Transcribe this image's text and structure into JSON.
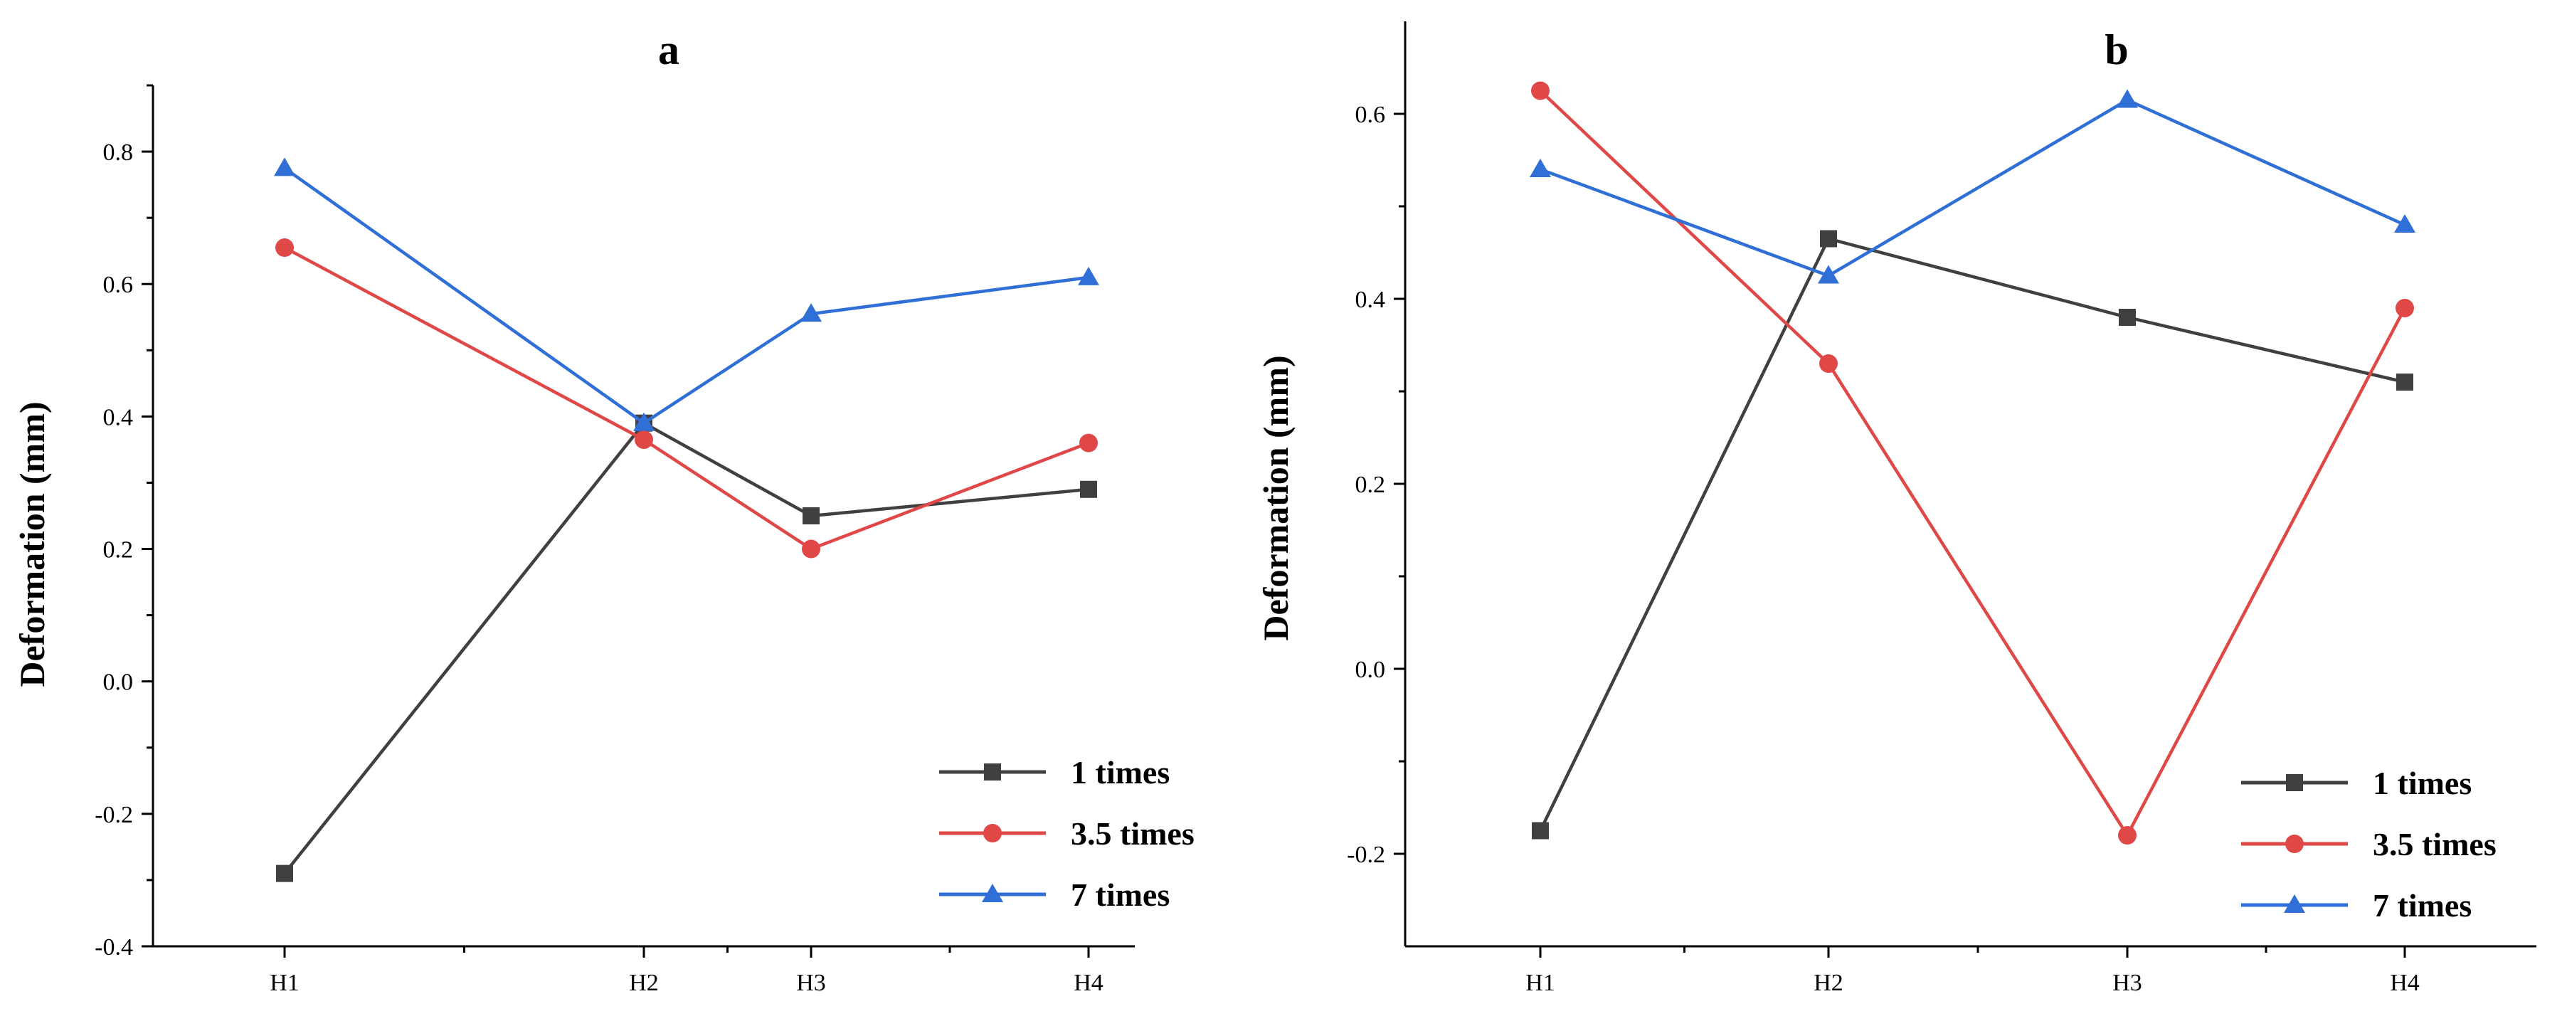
{
  "chart_data": [
    {
      "type": "line",
      "title": "a",
      "xlabel": "",
      "ylabel": "Deformation (mm)",
      "categories": [
        "H1",
        "H2",
        "H3",
        "H4"
      ],
      "ylim": [
        -0.4,
        0.9
      ],
      "yticks": [
        -0.4,
        -0.2,
        0.0,
        0.2,
        0.4,
        0.6,
        0.8
      ],
      "ytick_labels": [
        "-0.4",
        "-0.2",
        "0.0",
        "0.2",
        "0.4",
        "0.6",
        "0.8"
      ],
      "legend_position": "bottom-right",
      "series": [
        {
          "name": "1 times",
          "values": [
            -0.29,
            0.39,
            0.25,
            0.29
          ],
          "color": "#404040",
          "marker": "square"
        },
        {
          "name": "3.5 times",
          "values": [
            0.655,
            0.365,
            0.2,
            0.36
          ],
          "color": "#e04848",
          "marker": "circle"
        },
        {
          "name": "7 times",
          "values": [
            0.775,
            0.39,
            0.555,
            0.61
          ],
          "color": "#2f6fd6",
          "marker": "triangle"
        }
      ]
    },
    {
      "type": "line",
      "title": "b",
      "xlabel": "",
      "ylabel": "Deformation (mm)",
      "categories": [
        "H1",
        "H2",
        "H3",
        "H4"
      ],
      "ylim": [
        -0.3,
        0.7
      ],
      "yticks": [
        -0.2,
        0.0,
        0.2,
        0.4,
        0.6
      ],
      "ytick_labels": [
        "-0.2",
        "0.0",
        "0.2",
        "0.4",
        "0.6"
      ],
      "legend_position": "bottom-right",
      "series": [
        {
          "name": "1 times",
          "values": [
            -0.175,
            0.465,
            0.38,
            0.31
          ],
          "color": "#404040",
          "marker": "square"
        },
        {
          "name": "3.5 times",
          "values": [
            0.625,
            0.33,
            -0.18,
            0.39
          ],
          "color": "#e04848",
          "marker": "circle"
        },
        {
          "name": "7 times",
          "values": [
            0.54,
            0.425,
            0.615,
            0.48
          ],
          "color": "#2f6fd6",
          "marker": "triangle"
        }
      ]
    }
  ]
}
